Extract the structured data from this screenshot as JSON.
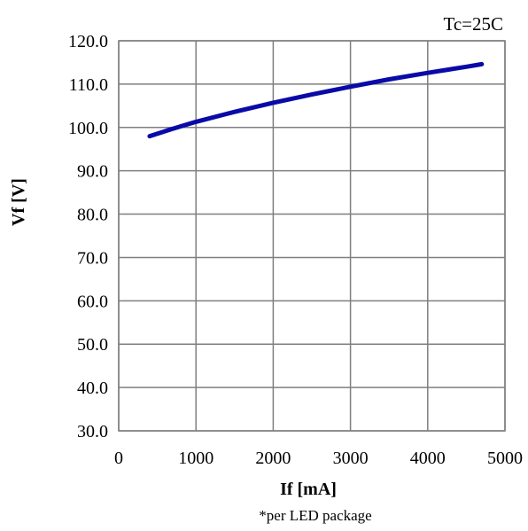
{
  "chart_data": {
    "type": "line",
    "xlabel": "If [mA]",
    "ylabel": "Vf [V]",
    "xlim": [
      0,
      5000
    ],
    "ylim": [
      30.0,
      120.0
    ],
    "x_ticks": [
      "0",
      "1000",
      "2000",
      "3000",
      "4000",
      "5000"
    ],
    "y_ticks": [
      "30.0",
      "40.0",
      "50.0",
      "60.0",
      "70.0",
      "80.0",
      "90.0",
      "100.0",
      "110.0",
      "120.0"
    ],
    "grid": true,
    "annotations": {
      "condition": "Tc=25C",
      "footnote": "*per LED package"
    },
    "series": [
      {
        "color": "#0a0aa8",
        "x": [
          400,
          700,
          1000,
          1500,
          2000,
          2500,
          3000,
          3500,
          4000,
          4500,
          4700
        ],
        "y": [
          98.0,
          99.7,
          101.3,
          103.6,
          105.7,
          107.6,
          109.4,
          111.1,
          112.6,
          114.0,
          114.6
        ]
      }
    ]
  }
}
